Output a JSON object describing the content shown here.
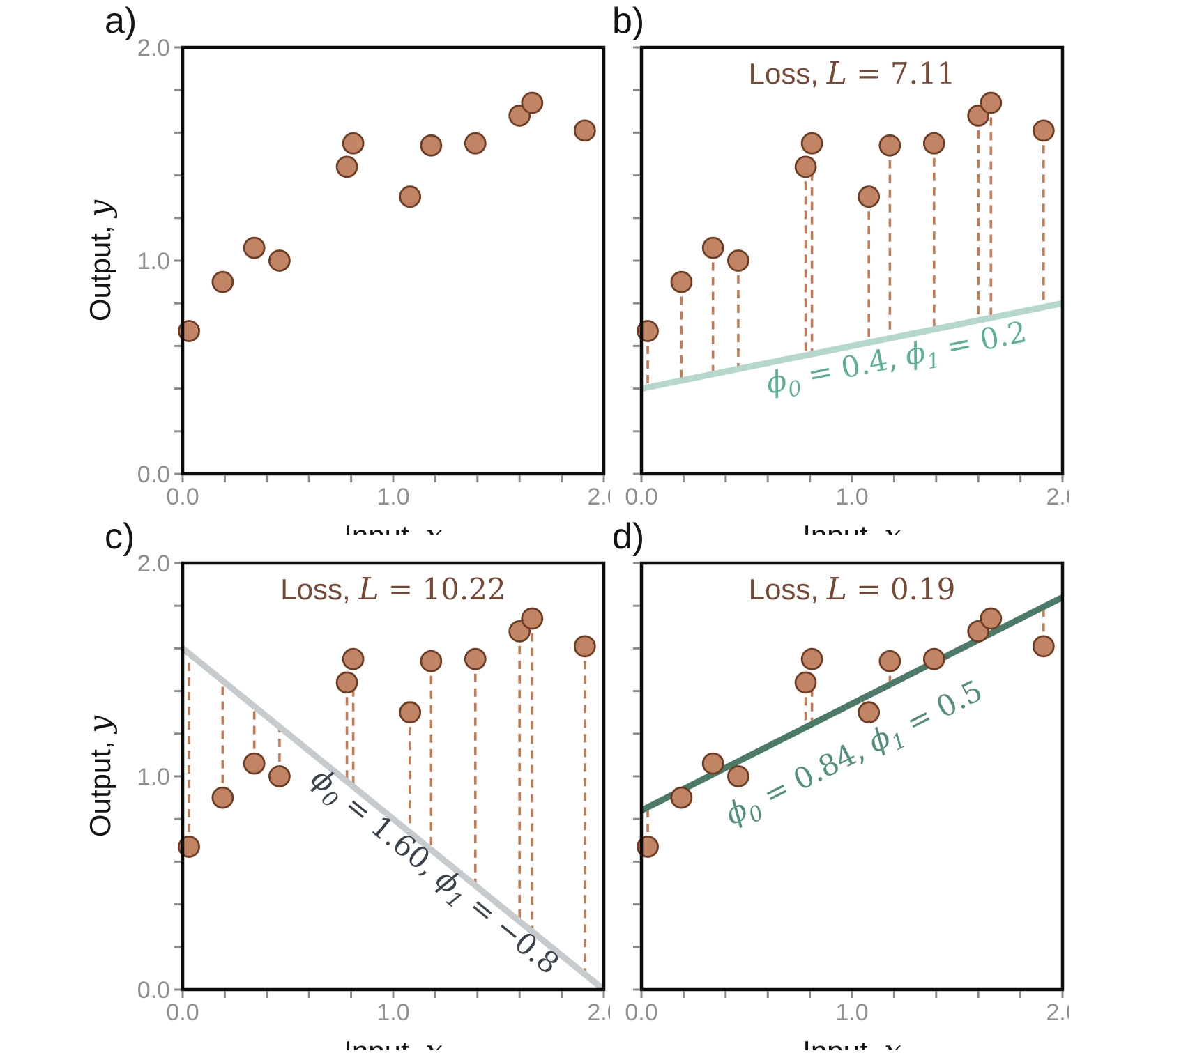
{
  "figure": {
    "background": "#ffffff",
    "phi_symbol": "ϕ",
    "axes": {
      "xlabel": {
        "prefix": "Input, ",
        "symbol": "x"
      },
      "ylabel": {
        "prefix": "Output, ",
        "symbol": "y"
      },
      "xlim": [
        0,
        2
      ],
      "ylim": [
        0,
        2
      ],
      "major_ticks": [
        0,
        1,
        2
      ],
      "major_tick_labels": [
        "0.0",
        "1.0",
        "2.0"
      ],
      "minor_tick_step": 0.2
    },
    "colors": {
      "point_fill": "#c18565",
      "point_stroke": "#6e3d24",
      "residual_dash": "#c47a55",
      "loss_title": "#764836",
      "tick_label": "#8f8f8f",
      "tick_mark": "#8a8a8a",
      "frame": "#0c0c0c"
    }
  },
  "dataset": {
    "x": [
      0.03,
      0.19,
      0.34,
      0.46,
      0.78,
      0.81,
      1.08,
      1.18,
      1.39,
      1.6,
      1.66,
      1.91
    ],
    "y": [
      0.67,
      0.9,
      1.06,
      1.0,
      1.44,
      1.55,
      1.3,
      1.54,
      1.55,
      1.68,
      1.74,
      1.61
    ]
  },
  "chart_data": [
    {
      "id": "a",
      "panel_label": "a)",
      "type": "scatter",
      "show_y_tick_labels": true,
      "show_ylabel": true,
      "loss_title": null,
      "fit_line": null
    },
    {
      "id": "b",
      "panel_label": "b)",
      "type": "scatter",
      "show_y_tick_labels": false,
      "show_ylabel": false,
      "loss_title": {
        "prefix": "Loss, ",
        "symbol": "L",
        "value": "7.11"
      },
      "fit_line": {
        "phi0": 0.4,
        "phi1": 0.2,
        "color": "#b5d8cb",
        "show_residuals": true,
        "label": {
          "phi0_text": "0.4",
          "phi1_text": "0.2",
          "color": "#5cb096",
          "anchor_x": 1.22,
          "anchor_y": 0.5
        }
      }
    },
    {
      "id": "c",
      "panel_label": "c)",
      "type": "scatter",
      "show_y_tick_labels": true,
      "show_ylabel": true,
      "loss_title": {
        "prefix": "Loss, ",
        "symbol": "L",
        "value": "10.22"
      },
      "fit_line": {
        "phi0": 1.6,
        "phi1": -0.8,
        "color": "#c6cbce",
        "show_residuals": true,
        "label": {
          "phi0_text": "1.60",
          "phi1_text": "−0.8",
          "color": "#3b444c",
          "anchor_x": 1.17,
          "anchor_y": 0.52
        }
      }
    },
    {
      "id": "d",
      "panel_label": "d)",
      "type": "scatter",
      "show_y_tick_labels": false,
      "show_ylabel": false,
      "loss_title": {
        "prefix": "Loss, ",
        "symbol": "L",
        "value": "0.19"
      },
      "fit_line": {
        "phi0": 0.84,
        "phi1": 0.5,
        "color": "#4b7a67",
        "show_residuals": true,
        "label": {
          "phi0_text": "0.84",
          "phi1_text": "0.5",
          "color": "#539078",
          "anchor_x": 1.03,
          "anchor_y": 1.07
        }
      }
    }
  ]
}
